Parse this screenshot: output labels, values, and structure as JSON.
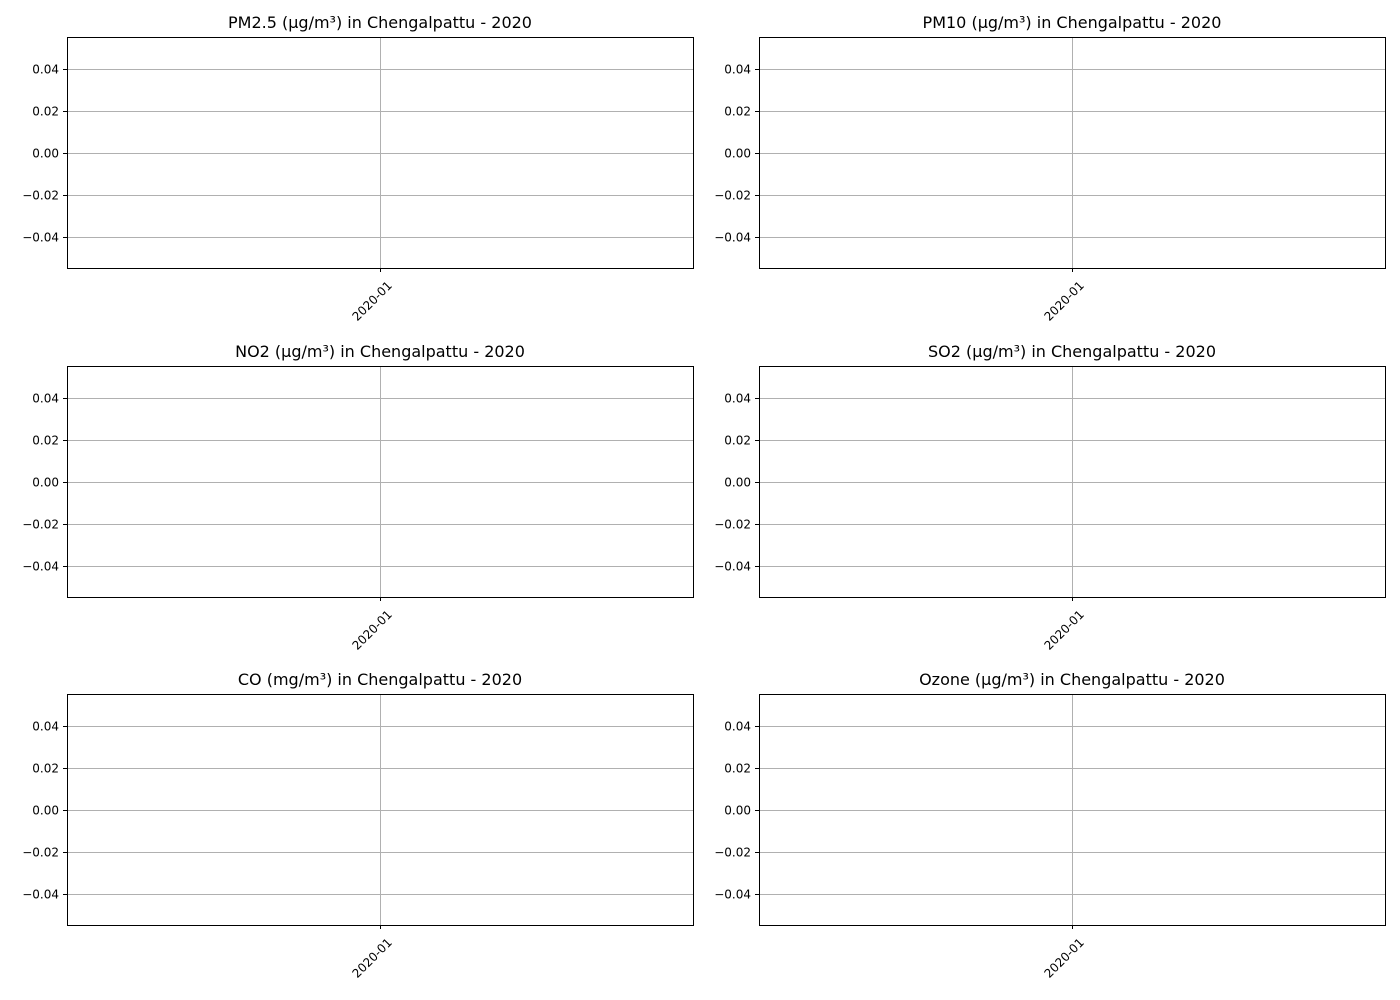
{
  "chart_data": [
    {
      "type": "line",
      "title": "PM2.5 (µg/m³) in Chengalpattu - 2020",
      "xlabel": "",
      "ylabel": "",
      "x_ticks": [
        "2020-01"
      ],
      "y_ticks": [
        "0.04",
        "0.02",
        "0.00",
        "−0.02",
        "−0.04"
      ],
      "ylim": [
        -0.055,
        0.055
      ],
      "grid": true,
      "series": []
    },
    {
      "type": "line",
      "title": "PM10 (µg/m³) in Chengalpattu - 2020",
      "xlabel": "",
      "ylabel": "",
      "x_ticks": [
        "2020-01"
      ],
      "y_ticks": [
        "0.04",
        "0.02",
        "0.00",
        "−0.02",
        "−0.04"
      ],
      "ylim": [
        -0.055,
        0.055
      ],
      "grid": true,
      "series": []
    },
    {
      "type": "line",
      "title": "NO2 (µg/m³) in Chengalpattu - 2020",
      "xlabel": "",
      "ylabel": "",
      "x_ticks": [
        "2020-01"
      ],
      "y_ticks": [
        "0.04",
        "0.02",
        "0.00",
        "−0.02",
        "−0.04"
      ],
      "ylim": [
        -0.055,
        0.055
      ],
      "grid": true,
      "series": []
    },
    {
      "type": "line",
      "title": "SO2 (µg/m³) in Chengalpattu - 2020",
      "xlabel": "",
      "ylabel": "",
      "x_ticks": [
        "2020-01"
      ],
      "y_ticks": [
        "0.04",
        "0.02",
        "0.00",
        "−0.02",
        "−0.04"
      ],
      "ylim": [
        -0.055,
        0.055
      ],
      "grid": true,
      "series": []
    },
    {
      "type": "line",
      "title": "CO (mg/m³) in Chengalpattu - 2020",
      "xlabel": "",
      "ylabel": "",
      "x_ticks": [
        "2020-01"
      ],
      "y_ticks": [
        "0.04",
        "0.02",
        "0.00",
        "−0.02",
        "−0.04"
      ],
      "ylim": [
        -0.055,
        0.055
      ],
      "grid": true,
      "series": []
    },
    {
      "type": "line",
      "title": "Ozone (µg/m³) in Chengalpattu - 2020",
      "xlabel": "",
      "ylabel": "",
      "x_ticks": [
        "2020-01"
      ],
      "y_ticks": [
        "0.04",
        "0.02",
        "0.00",
        "−0.02",
        "−0.04"
      ],
      "ylim": [
        -0.055,
        0.055
      ],
      "grid": true,
      "series": []
    }
  ],
  "colors": {
    "grid": "#b0b0b0",
    "frame": "#000000",
    "text": "#000000",
    "background": "#ffffff"
  }
}
